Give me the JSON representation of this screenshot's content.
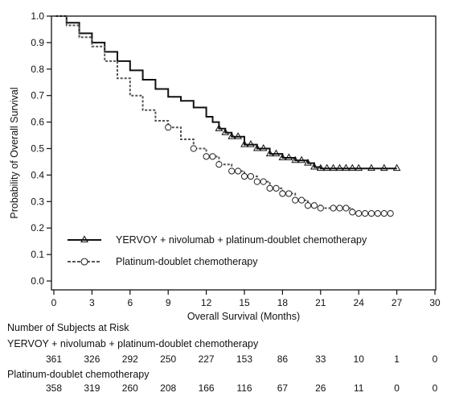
{
  "chart_data": {
    "type": "line",
    "title": "",
    "xlabel": "Overall Survival (Months)",
    "ylabel": "Probability of Overall Survival",
    "xlim": [
      0,
      30
    ],
    "ylim": [
      0,
      1
    ],
    "x_ticks": [
      "0",
      "3",
      "6",
      "9",
      "12",
      "15",
      "18",
      "21",
      "24",
      "27",
      "30"
    ],
    "y_ticks": [
      "0.0",
      "0.1",
      "0.2",
      "0.3",
      "0.4",
      "0.5",
      "0.6",
      "0.7",
      "0.8",
      "0.9",
      "1.0"
    ],
    "grid": false,
    "legend_position": "lower-left",
    "series": [
      {
        "name": "YERVOY + nivolumab + platinum-doublet chemotherapy",
        "line_style": "solid",
        "marker": "triangle",
        "color": "#111111",
        "points": [
          [
            0,
            1.0
          ],
          [
            1.0,
            0.975
          ],
          [
            2.0,
            0.935
          ],
          [
            3.0,
            0.9
          ],
          [
            4.0,
            0.865
          ],
          [
            5.0,
            0.83
          ],
          [
            6.0,
            0.795
          ],
          [
            7.0,
            0.76
          ],
          [
            8.0,
            0.725
          ],
          [
            9.0,
            0.695
          ],
          [
            10.0,
            0.68
          ],
          [
            11.0,
            0.655
          ],
          [
            12.0,
            0.62
          ],
          [
            12.5,
            0.6
          ],
          [
            13.0,
            0.575
          ],
          [
            13.5,
            0.56
          ],
          [
            14.0,
            0.545
          ],
          [
            15.0,
            0.515
          ],
          [
            16.0,
            0.5
          ],
          [
            17.0,
            0.48
          ],
          [
            18.0,
            0.465
          ],
          [
            19.0,
            0.455
          ],
          [
            20.0,
            0.445
          ],
          [
            20.5,
            0.43
          ],
          [
            21.0,
            0.425
          ],
          [
            27.0,
            0.425
          ]
        ],
        "censor_x": [
          13.0,
          13.5,
          14.0,
          14.5,
          15.0,
          15.5,
          16.0,
          16.5,
          17.0,
          17.5,
          18.0,
          18.5,
          19.0,
          19.5,
          20.0,
          20.5,
          21.0,
          21.5,
          22.0,
          22.5,
          23.0,
          23.5,
          24.0,
          25.0,
          26.0,
          27.0
        ]
      },
      {
        "name": "Platinum-doublet chemotherapy",
        "line_style": "dashed",
        "marker": "circle",
        "color": "#555555",
        "points": [
          [
            0,
            1.0
          ],
          [
            1.0,
            0.965
          ],
          [
            2.0,
            0.92
          ],
          [
            3.0,
            0.885
          ],
          [
            4.0,
            0.83
          ],
          [
            5.0,
            0.765
          ],
          [
            6.0,
            0.7
          ],
          [
            7.0,
            0.645
          ],
          [
            8.0,
            0.605
          ],
          [
            9.0,
            0.58
          ],
          [
            10.0,
            0.535
          ],
          [
            11.0,
            0.5
          ],
          [
            12.0,
            0.47
          ],
          [
            13.0,
            0.44
          ],
          [
            14.0,
            0.415
          ],
          [
            15.0,
            0.395
          ],
          [
            16.0,
            0.375
          ],
          [
            17.0,
            0.35
          ],
          [
            18.0,
            0.33
          ],
          [
            19.0,
            0.305
          ],
          [
            20.0,
            0.285
          ],
          [
            21.0,
            0.275
          ],
          [
            22.0,
            0.275
          ],
          [
            23.0,
            0.275
          ],
          [
            23.5,
            0.26
          ],
          [
            24.0,
            0.255
          ],
          [
            26.5,
            0.255
          ]
        ],
        "censor_x": [
          9.0,
          11.0,
          12.0,
          12.5,
          13.0,
          14.0,
          14.5,
          15.0,
          15.5,
          16.0,
          16.5,
          17.0,
          17.5,
          18.0,
          18.5,
          19.0,
          19.5,
          20.0,
          20.5,
          21.0,
          22.0,
          22.5,
          23.0,
          23.5,
          24.0,
          24.5,
          25.0,
          25.5,
          26.0,
          26.5
        ]
      }
    ],
    "risk_table": {
      "header": "Number of Subjects at Risk",
      "times": [
        0,
        3,
        6,
        9,
        12,
        15,
        18,
        21,
        24,
        27,
        30
      ],
      "rows": [
        {
          "label": "YERVOY + nivolumab + platinum-doublet chemotherapy",
          "values": [
            "361",
            "326",
            "292",
            "250",
            "227",
            "153",
            "86",
            "33",
            "10",
            "1",
            "0"
          ]
        },
        {
          "label": "Platinum-doublet chemotherapy",
          "values": [
            "358",
            "319",
            "260",
            "208",
            "166",
            "116",
            "67",
            "26",
            "11",
            "0",
            "0"
          ]
        }
      ]
    }
  }
}
